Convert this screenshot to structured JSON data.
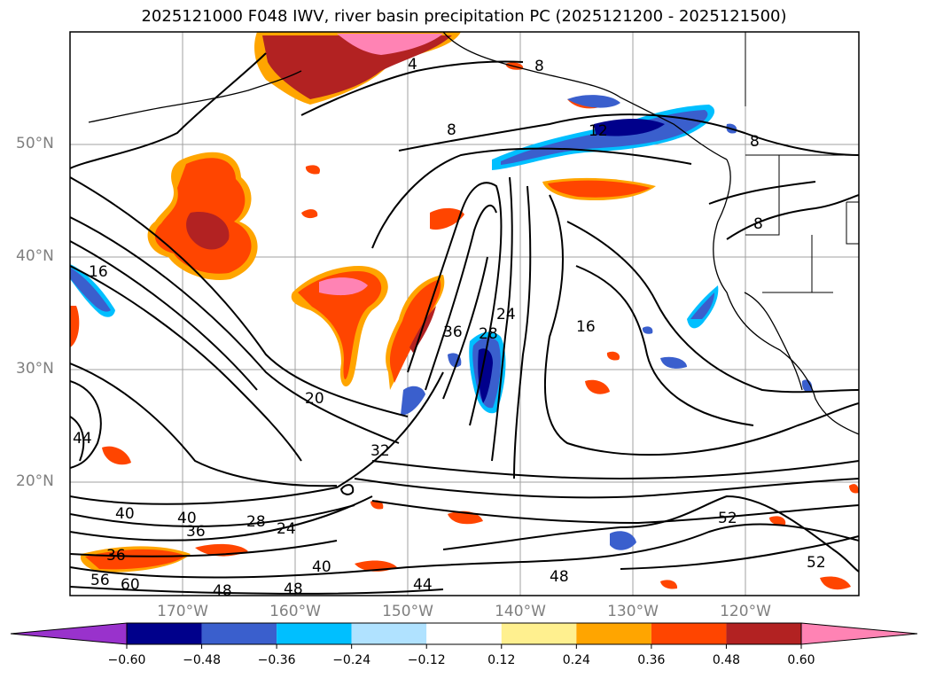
{
  "title": "2025121000 F048 IWV, river basin precipitation PC (2025121200 - 2025121500)",
  "lat_labels": [
    "50°N",
    "40°N",
    "30°N",
    "20°N"
  ],
  "lon_labels": [
    "170°W",
    "160°W",
    "150°W",
    "140°W",
    "130°W",
    "120°W"
  ],
  "contour_labels": [
    "4",
    "8",
    "8",
    "8",
    "8",
    "12",
    "16",
    "16",
    "20",
    "24",
    "24",
    "28",
    "28",
    "32",
    "36",
    "36",
    "36",
    "40",
    "40",
    "40",
    "44",
    "44",
    "48",
    "48",
    "48",
    "52",
    "52",
    "56",
    "60"
  ],
  "colorbar": {
    "ticks": [
      "−0.60",
      "−0.48",
      "−0.36",
      "−0.24",
      "−0.12",
      "0.12",
      "0.24",
      "0.36",
      "0.48",
      "0.60"
    ],
    "colors": [
      "#9932cc",
      "#00008b",
      "#3a5fcd",
      "#00bfff",
      "#b0e2ff",
      "#ffffff",
      "#fff08f",
      "#ffa500",
      "#ff4500",
      "#b22222",
      "#ff83b4"
    ]
  },
  "colors": {
    "pos_low": "#ffa500",
    "pos_mid": "#ff4500",
    "pos_high": "#b22222",
    "pos_max": "#ff83b4",
    "neg_low": "#00bfff",
    "neg_mid": "#3a5fcd",
    "neg_high": "#00008b"
  }
}
